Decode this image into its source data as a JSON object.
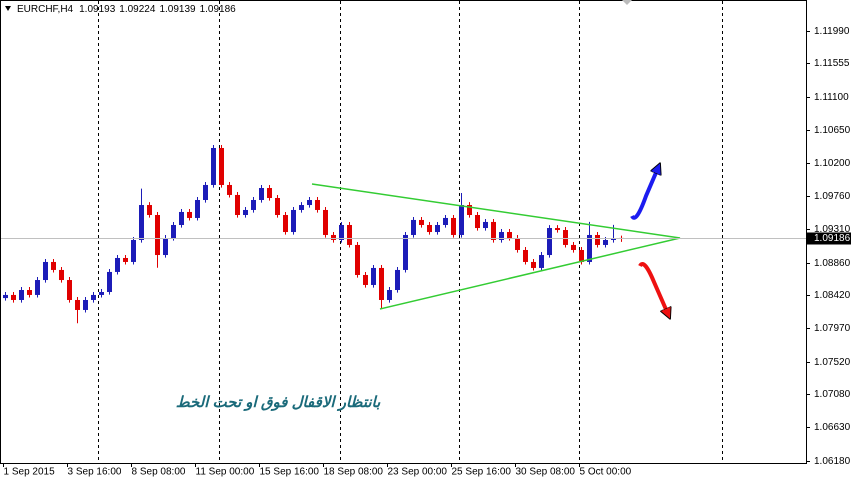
{
  "chart_data": {
    "type": "candlestick",
    "symbol": "EURCHF,H4",
    "annotation": "بانتظار الاقفال فوق او تحت الخط",
    "up_color": "#1c1cb8",
    "down_color": "#e00000",
    "ylim": [
      1.0615,
      1.1241
    ],
    "yticks": [
      {
        "value": 1.1199,
        "label": "1.11990"
      },
      1.11555,
      {
        "value": 1.111,
        "label": "1.11100"
      },
      {
        "value": 1.1065,
        "label": "1.10650"
      },
      {
        "value": 1.102,
        "label": "1.10200"
      },
      {
        "value": 1.0976,
        "label": "1.09760"
      },
      {
        "value": 1.0931,
        "label": "1.09310"
      },
      {
        "value": 1.0886,
        "label": "1.08860"
      },
      {
        "value": 1.0842,
        "label": "1.08420"
      },
      {
        "value": 1.0797,
        "label": "1.07970"
      },
      {
        "value": 1.0752,
        "label": "1.07520"
      },
      {
        "value": 1.0708,
        "label": "1.07080"
      },
      {
        "value": 1.0663,
        "label": "1.06630"
      },
      {
        "value": 1.0618,
        "label": "1.06180"
      }
    ],
    "categories": [
      "1 Sep 2015",
      null,
      null,
      null,
      null,
      null,
      null,
      null,
      "3 Sep 16:00",
      null,
      null,
      null,
      null,
      null,
      null,
      null,
      "8 Sep 08:00",
      null,
      null,
      null,
      null,
      null,
      null,
      null,
      "11 Sep 00:00",
      null,
      null,
      null,
      null,
      null,
      null,
      null,
      "15 Sep 16:00",
      null,
      null,
      null,
      null,
      null,
      null,
      null,
      "18 Sep 08:00",
      null,
      null,
      null,
      null,
      null,
      null,
      null,
      "23 Sep 00:00",
      null,
      null,
      null,
      null,
      null,
      null,
      null,
      "25 Sep 16:00",
      null,
      null,
      null,
      null,
      null,
      null,
      null,
      "30 Sep 08:00",
      null,
      null,
      null,
      null,
      null,
      null,
      null,
      "5 Oct 00:00",
      null,
      null,
      null,
      null,
      null
    ],
    "open": [
      1.0838,
      1.08422,
      1.08354,
      1.08489,
      1.08422,
      1.08624,
      1.08868,
      1.0876,
      1.08624,
      1.08354,
      1.08219,
      1.08354,
      1.08422,
      1.08462,
      1.08733,
      1.08922,
      1.08868,
      1.09165,
      1.09638,
      1.09503,
      1.08962,
      1.09192,
      1.09368,
      1.09544,
      1.09463,
      1.09706,
      1.09909,
      1.10409,
      1.09909,
      1.09774,
      1.09503,
      1.09571,
      1.09706,
      1.09868,
      1.09733,
      1.09503,
      1.09273,
      1.09571,
      1.09638,
      1.09706,
      1.09571,
      1.09233,
      1.09165,
      1.09368,
      1.09098,
      1.08692,
      1.08557,
      1.08787,
      1.08354,
      1.08489,
      1.0876,
      1.09233,
      1.09436,
      1.09368,
      1.09273,
      1.09368,
      1.09463,
      1.09233,
      1.09638,
      1.09503,
      1.09327,
      1.09409,
      1.09165,
      1.09273,
      1.09192,
      1.0903,
      1.08868,
      1.08787,
      1.08962,
      1.09327,
      1.093,
      1.09098,
      1.0903,
      1.08868,
      1.09233,
      1.09098,
      1.09165,
      1.09193
    ],
    "high": [
      1.08462,
      1.08462,
      1.08529,
      1.08529,
      1.08664,
      1.08908,
      1.08908,
      1.088,
      1.08664,
      1.08394,
      1.08394,
      1.08462,
      1.08502,
      1.08773,
      1.08962,
      1.08962,
      1.09205,
      1.0986,
      1.09678,
      1.09543,
      1.09232,
      1.09408,
      1.09584,
      1.09584,
      1.09746,
      1.09949,
      1.10449,
      1.10449,
      1.09949,
      1.09814,
      1.09611,
      1.09746,
      1.09908,
      1.09908,
      1.09773,
      1.09543,
      1.09611,
      1.09678,
      1.09746,
      1.09746,
      1.09611,
      1.09273,
      1.09408,
      1.09408,
      1.09138,
      1.08732,
      1.08827,
      1.08827,
      1.08529,
      1.088,
      1.09273,
      1.09476,
      1.09476,
      1.09408,
      1.09408,
      1.09503,
      1.09503,
      1.098,
      1.09678,
      1.09543,
      1.09449,
      1.09449,
      1.09313,
      1.09313,
      1.09232,
      1.0907,
      1.08908,
      1.09002,
      1.09367,
      1.09367,
      1.0934,
      1.09138,
      1.0907,
      1.0941,
      1.09273,
      1.09205,
      1.0937,
      1.09224
    ],
    "low": [
      1.08345,
      1.08319,
      1.08319,
      1.08387,
      1.08387,
      1.08589,
      1.08725,
      1.08589,
      1.08319,
      1.0804,
      1.08184,
      1.08319,
      1.08387,
      1.08427,
      1.08698,
      1.08833,
      1.08833,
      1.0913,
      1.09468,
      1.0879,
      1.08927,
      1.09157,
      1.09333,
      1.09428,
      1.09428,
      1.09671,
      1.09874,
      1.09874,
      1.09739,
      1.09468,
      1.09468,
      1.09536,
      1.09671,
      1.09698,
      1.09468,
      1.09238,
      1.09238,
      1.09536,
      1.09603,
      1.09536,
      1.09198,
      1.0913,
      1.0913,
      1.09063,
      1.08657,
      1.08522,
      1.08522,
      1.0824,
      1.08319,
      1.08454,
      1.08725,
      1.09198,
      1.09333,
      1.09238,
      1.09238,
      1.09333,
      1.09198,
      1.09198,
      1.09468,
      1.09292,
      1.09292,
      1.0913,
      1.0913,
      1.09157,
      1.08995,
      1.08833,
      1.08752,
      1.08752,
      1.08927,
      1.09265,
      1.09063,
      1.08995,
      1.08833,
      1.08833,
      1.09063,
      1.09063,
      1.0913,
      1.09139
    ],
    "close": [
      1.08422,
      1.08354,
      1.08489,
      1.08422,
      1.08624,
      1.08868,
      1.0876,
      1.08624,
      1.08354,
      1.08219,
      1.08354,
      1.08422,
      1.08462,
      1.08733,
      1.08922,
      1.08868,
      1.09165,
      1.09638,
      1.09503,
      1.08962,
      1.09192,
      1.09368,
      1.09544,
      1.09463,
      1.09706,
      1.09909,
      1.10409,
      1.09909,
      1.09774,
      1.09503,
      1.09571,
      1.09706,
      1.09868,
      1.09733,
      1.09503,
      1.09273,
      1.09571,
      1.09638,
      1.09706,
      1.09571,
      1.09233,
      1.09165,
      1.09368,
      1.09098,
      1.08692,
      1.08557,
      1.08787,
      1.08354,
      1.08489,
      1.0876,
      1.09233,
      1.09436,
      1.09368,
      1.09273,
      1.09368,
      1.09463,
      1.09233,
      1.09638,
      1.09503,
      1.09327,
      1.09409,
      1.09165,
      1.09273,
      1.09192,
      1.0903,
      1.08868,
      1.08787,
      1.08962,
      1.09327,
      1.093,
      1.09098,
      1.0903,
      1.08868,
      1.09233,
      1.09098,
      1.09165,
      1.09192,
      1.09186
    ]
  }
}
